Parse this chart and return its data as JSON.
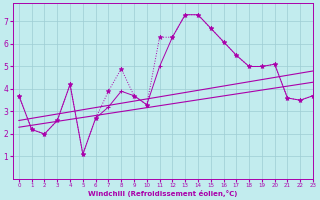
{
  "xlabel": "Windchill (Refroidissement éolien,°C)",
  "background_color": "#c2ecee",
  "grid_color": "#9ecdd4",
  "line_color": "#aa00aa",
  "x_values": [
    0,
    1,
    2,
    3,
    4,
    5,
    6,
    7,
    8,
    9,
    10,
    11,
    12,
    13,
    14,
    15,
    16,
    17,
    18,
    19,
    20,
    21,
    22,
    23
  ],
  "line_jagged": [
    3.7,
    2.2,
    2.0,
    2.6,
    4.2,
    1.1,
    2.7,
    3.9,
    4.9,
    3.7,
    3.3,
    6.3,
    6.3,
    7.3,
    7.3,
    6.7,
    6.1,
    5.5,
    5.0,
    5.0,
    5.1,
    3.6,
    3.5,
    3.7
  ],
  "line_smooth": [
    3.7,
    2.2,
    2.0,
    2.6,
    4.2,
    1.1,
    2.7,
    3.2,
    3.9,
    3.7,
    3.3,
    5.0,
    6.3,
    7.3,
    7.3,
    6.7,
    6.1,
    5.5,
    5.0,
    5.0,
    5.1,
    3.6,
    3.5,
    3.7
  ],
  "trend1_x": [
    0,
    23
  ],
  "trend1_y": [
    2.3,
    4.3
  ],
  "trend2_x": [
    0,
    23
  ],
  "trend2_y": [
    2.6,
    4.8
  ],
  "ylim": [
    0,
    7.8
  ],
  "xlim": [
    -0.5,
    23
  ],
  "yticks": [
    1,
    2,
    3,
    4,
    5,
    6,
    7
  ],
  "xticks": [
    0,
    1,
    2,
    3,
    4,
    5,
    6,
    7,
    8,
    9,
    10,
    11,
    12,
    13,
    14,
    15,
    16,
    17,
    18,
    19,
    20,
    21,
    22,
    23
  ]
}
